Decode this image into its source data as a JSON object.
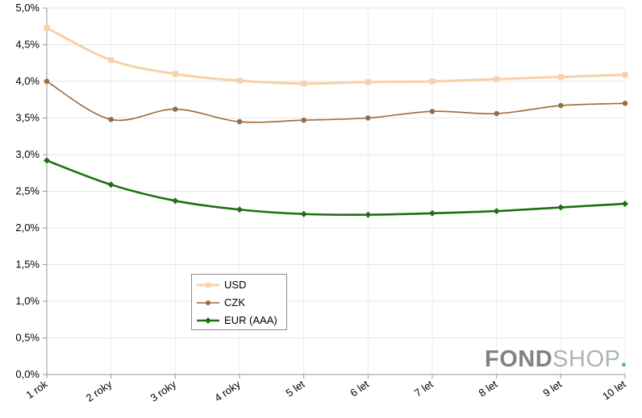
{
  "chart_data": {
    "type": "line",
    "categories": [
      "1 rok",
      "2 roky",
      "3 roky",
      "4 roky",
      "5 let",
      "6 let",
      "7 let",
      "8 let",
      "9 let",
      "10 let"
    ],
    "ylim": [
      0,
      5
    ],
    "yticks": [
      "0,0%",
      "0,5%",
      "1,0%",
      "1,5%",
      "2,0%",
      "2,5%",
      "3,0%",
      "3,5%",
      "4,0%",
      "4,5%",
      "5,0%"
    ],
    "grid": true,
    "legend_position": "bottom-left",
    "series": [
      {
        "name": "USD",
        "color": "#f9d0a8",
        "marker": "square",
        "values": [
          4.73,
          4.29,
          4.1,
          4.01,
          3.97,
          3.99,
          4.0,
          4.03,
          4.06,
          4.09
        ]
      },
      {
        "name": "CZK",
        "color": "#9a6a3a",
        "marker": "circle",
        "values": [
          4.0,
          3.48,
          3.62,
          3.45,
          3.47,
          3.5,
          3.59,
          3.56,
          3.67,
          3.7
        ]
      },
      {
        "name": "EUR (AAA)",
        "color": "#1e6e12",
        "marker": "diamond",
        "values": [
          2.92,
          2.59,
          2.37,
          2.25,
          2.19,
          2.18,
          2.2,
          2.23,
          2.28,
          2.33
        ]
      }
    ]
  },
  "legend": {
    "items": [
      {
        "label": "USD"
      },
      {
        "label": "CZK"
      },
      {
        "label": "EUR (AAA)"
      }
    ]
  },
  "watermark": {
    "part1": "FOND",
    "part2": "SHOP",
    "dot": "."
  }
}
